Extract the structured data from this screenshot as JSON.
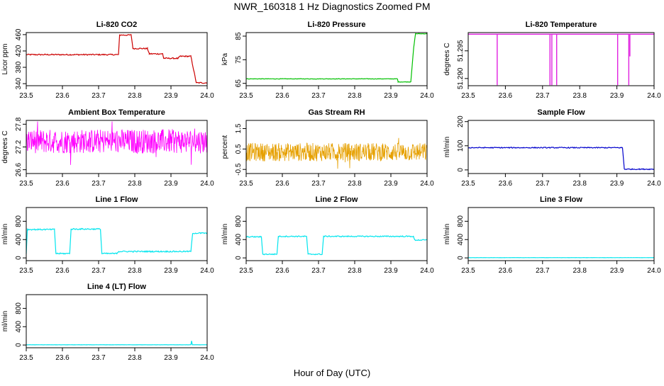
{
  "figure": {
    "title": "NWR_160318  1 Hz Diagnostics Zoomed PM",
    "xlabel": "Hour of Day (UTC)"
  },
  "chart_data": [
    {
      "id": "co2",
      "type": "line",
      "title": "Li-820 CO2",
      "ylabel": "Licor ppm",
      "color": "#cc0000",
      "xlim": [
        23.5,
        24.0
      ],
      "ylim": [
        335,
        465
      ],
      "xticks": [
        23.5,
        23.6,
        23.7,
        23.8,
        23.9,
        24.0
      ],
      "yticks": [
        340,
        380,
        420,
        460
      ],
      "noise": 1.5,
      "points": [
        [
          23.5,
          411
        ],
        [
          23.755,
          411
        ],
        [
          23.758,
          459
        ],
        [
          23.79,
          459
        ],
        [
          23.795,
          426
        ],
        [
          23.835,
          426
        ],
        [
          23.84,
          413
        ],
        [
          23.877,
          413
        ],
        [
          23.88,
          402
        ],
        [
          23.92,
          402
        ],
        [
          23.925,
          407
        ],
        [
          23.955,
          407
        ],
        [
          23.97,
          342
        ],
        [
          24.0,
          342
        ]
      ]
    },
    {
      "id": "pressure",
      "type": "line",
      "title": "Li-820 Pressure",
      "ylabel": "kPa",
      "color": "#00c000",
      "xlim": [
        23.5,
        24.0
      ],
      "ylim": [
        64,
        86.5
      ],
      "xticks": [
        23.5,
        23.6,
        23.7,
        23.8,
        23.9,
        24.0
      ],
      "yticks": [
        65,
        75,
        85
      ],
      "noise": 0.1,
      "points": [
        [
          23.5,
          66.9
        ],
        [
          23.918,
          66.9
        ],
        [
          23.92,
          65.6
        ],
        [
          23.955,
          65.6
        ],
        [
          23.963,
          80
        ],
        [
          23.968,
          86
        ],
        [
          24.0,
          86
        ]
      ]
    },
    {
      "id": "temp820",
      "type": "line",
      "title": "Li-820 Temperature",
      "ylabel": "degrees C",
      "color": "#e020e0",
      "xlim": [
        23.5,
        24.0
      ],
      "ylim": [
        51.2887,
        51.2983
      ],
      "xticks": [
        23.5,
        23.6,
        23.7,
        23.8,
        23.9,
        24.0
      ],
      "yticks": [
        51.29,
        51.295
      ],
      "ytick_labels": [
        "51.290",
        "51.295"
      ],
      "noise": 0,
      "baseline": 51.298,
      "spikes": [
        [
          23.578,
          51.2888
        ],
        [
          23.72,
          51.2888
        ],
        [
          23.725,
          51.2888
        ],
        [
          23.738,
          51.2888
        ],
        [
          23.902,
          51.2888
        ],
        [
          23.932,
          51.2888
        ],
        [
          23.935,
          51.294
        ]
      ]
    },
    {
      "id": "boxtemp",
      "type": "line",
      "title": "Ambient Box Temperature",
      "ylabel": "degrees C",
      "color": "#ff00ff",
      "xlim": [
        23.5,
        24.0
      ],
      "ylim": [
        26.5,
        27.9
      ],
      "xticks": [
        23.5,
        23.6,
        23.7,
        23.8,
        23.9,
        24.0
      ],
      "yticks": [
        26.6,
        27.2,
        27.8
      ],
      "noise": 0.32,
      "noise_mode": "dense",
      "points": [
        [
          23.5,
          27.35
        ],
        [
          24.0,
          27.35
        ]
      ]
    },
    {
      "id": "rh",
      "type": "line",
      "title": "Gas Stream RH",
      "ylabel": "percent",
      "color": "#e6a000",
      "xlim": [
        23.5,
        24.0
      ],
      "ylim": [
        -0.7,
        1.9
      ],
      "xticks": [
        23.5,
        23.6,
        23.7,
        23.8,
        23.9,
        24.0
      ],
      "yticks": [
        -0.5,
        0.5,
        1.5
      ],
      "ytick_labels": [
        "-0.5",
        "0.5",
        "1.5"
      ],
      "noise": 0.45,
      "noise_mode": "dense",
      "points": [
        [
          23.5,
          0.35
        ],
        [
          24.0,
          0.35
        ]
      ]
    },
    {
      "id": "sample",
      "type": "line",
      "title": "Sample Flow",
      "ylabel": "ml/min",
      "color": "#0000cc",
      "xlim": [
        23.5,
        24.0
      ],
      "ylim": [
        -15,
        205
      ],
      "xticks": [
        23.5,
        23.6,
        23.7,
        23.8,
        23.9,
        24.0
      ],
      "yticks": [
        0,
        100,
        200
      ],
      "noise": 2,
      "points": [
        [
          23.5,
          92
        ],
        [
          23.915,
          92
        ],
        [
          23.92,
          3
        ],
        [
          24.0,
          3
        ]
      ]
    },
    {
      "id": "line1",
      "type": "line",
      "title": "Line 1 Flow",
      "ylabel": "ml/min",
      "color": "#00e5ee",
      "xlim": [
        23.5,
        24.0
      ],
      "ylim": [
        -60,
        1100
      ],
      "xticks": [
        23.5,
        23.6,
        23.7,
        23.8,
        23.9,
        24.0
      ],
      "yticks": [
        0,
        400,
        800
      ],
      "noise": 14,
      "points": [
        [
          23.5,
          95
        ],
        [
          23.503,
          620
        ],
        [
          23.578,
          620
        ],
        [
          23.582,
          95
        ],
        [
          23.62,
          95
        ],
        [
          23.624,
          630
        ],
        [
          23.705,
          630
        ],
        [
          23.709,
          95
        ],
        [
          23.75,
          95
        ],
        [
          23.755,
          140
        ],
        [
          23.955,
          140
        ],
        [
          23.96,
          540
        ],
        [
          24.0,
          540
        ]
      ]
    },
    {
      "id": "line2",
      "type": "line",
      "title": "Line 2 Flow",
      "ylabel": "ml/min",
      "color": "#00e5ee",
      "xlim": [
        23.5,
        24.0
      ],
      "ylim": [
        -60,
        1100
      ],
      "xticks": [
        23.5,
        23.6,
        23.7,
        23.8,
        23.9,
        24.0
      ],
      "yticks": [
        0,
        400,
        800
      ],
      "noise": 12,
      "points": [
        [
          23.5,
          460
        ],
        [
          23.542,
          460
        ],
        [
          23.546,
          80
        ],
        [
          23.585,
          80
        ],
        [
          23.589,
          470
        ],
        [
          23.667,
          470
        ],
        [
          23.671,
          80
        ],
        [
          23.71,
          80
        ],
        [
          23.714,
          470
        ],
        [
          23.962,
          470
        ],
        [
          23.966,
          390
        ],
        [
          24.0,
          390
        ]
      ]
    },
    {
      "id": "line3",
      "type": "line",
      "title": "Line 3 Flow",
      "ylabel": "ml/min",
      "color": "#00e5ee",
      "xlim": [
        23.5,
        24.0
      ],
      "ylim": [
        -60,
        1100
      ],
      "xticks": [
        23.5,
        23.6,
        23.7,
        23.8,
        23.9,
        24.0
      ],
      "yticks": [
        0,
        400,
        800
      ],
      "noise": 1,
      "points": [
        [
          23.5,
          5
        ],
        [
          24.0,
          5
        ]
      ]
    },
    {
      "id": "line4",
      "type": "line",
      "title": "Line 4 (LT) Flow",
      "ylabel": "ml/min",
      "color": "#00e5ee",
      "xlim": [
        23.5,
        24.0
      ],
      "ylim": [
        -60,
        1100
      ],
      "xticks": [
        23.5,
        23.6,
        23.7,
        23.8,
        23.9,
        24.0
      ],
      "yticks": [
        0,
        400,
        800
      ],
      "noise": 1.5,
      "points": [
        [
          23.5,
          5
        ],
        [
          23.955,
          5
        ],
        [
          23.957,
          90
        ],
        [
          23.959,
          5
        ],
        [
          24.0,
          5
        ]
      ]
    }
  ]
}
